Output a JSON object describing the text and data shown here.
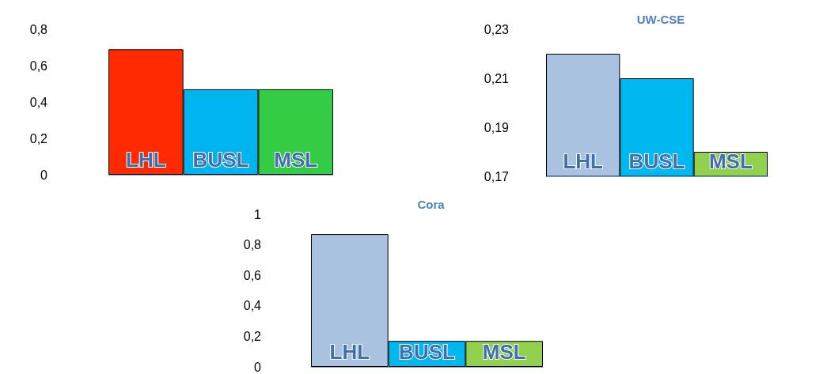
{
  "chart_data": [
    {
      "type": "bar",
      "categories": [
        "LHL",
        "BUSL",
        "MSL"
      ],
      "values": [
        0.69,
        0.47,
        0.47
      ],
      "colors": [
        "#ff2a00",
        "#00b4f0",
        "#33cc44"
      ],
      "ylim": [
        0,
        0.8
      ],
      "yticks": [
        {
          "value": 0,
          "label": "0"
        },
        {
          "value": 0.2,
          "label": "0,2"
        },
        {
          "value": 0.4,
          "label": "0,4"
        },
        {
          "value": 0.6,
          "label": "0,6"
        },
        {
          "value": 0.8,
          "label": "0,8"
        }
      ],
      "grid": false
    },
    {
      "type": "bar",
      "title": "UW-CSE",
      "categories": [
        "LHL",
        "BUSL",
        "MSL"
      ],
      "values": [
        0.22,
        0.21,
        0.18
      ],
      "colors": [
        "#a8c2e0",
        "#00b8f0",
        "#92d050"
      ],
      "ylim": [
        0.17,
        0.23
      ],
      "yticks": [
        {
          "value": 0.17,
          "label": "0,17"
        },
        {
          "value": 0.19,
          "label": "0,19"
        },
        {
          "value": 0.21,
          "label": "0,21"
        },
        {
          "value": 0.23,
          "label": "0,23"
        }
      ],
      "grid": false
    },
    {
      "type": "bar",
      "title": "Cora",
      "categories": [
        "LHL",
        "BUSL",
        "MSL"
      ],
      "values": [
        0.87,
        0.17,
        0.17
      ],
      "colors": [
        "#a8c2e0",
        "#00b8f0",
        "#92d050"
      ],
      "ylim": [
        0,
        1
      ],
      "yticks": [
        {
          "value": 0,
          "label": "0"
        },
        {
          "value": 0.2,
          "label": "0,2"
        },
        {
          "value": 0.4,
          "label": "0,4"
        },
        {
          "value": 0.6,
          "label": "0,6"
        },
        {
          "value": 0.8,
          "label": "0,8"
        },
        {
          "value": 1,
          "label": "1"
        }
      ],
      "grid": false
    }
  ]
}
